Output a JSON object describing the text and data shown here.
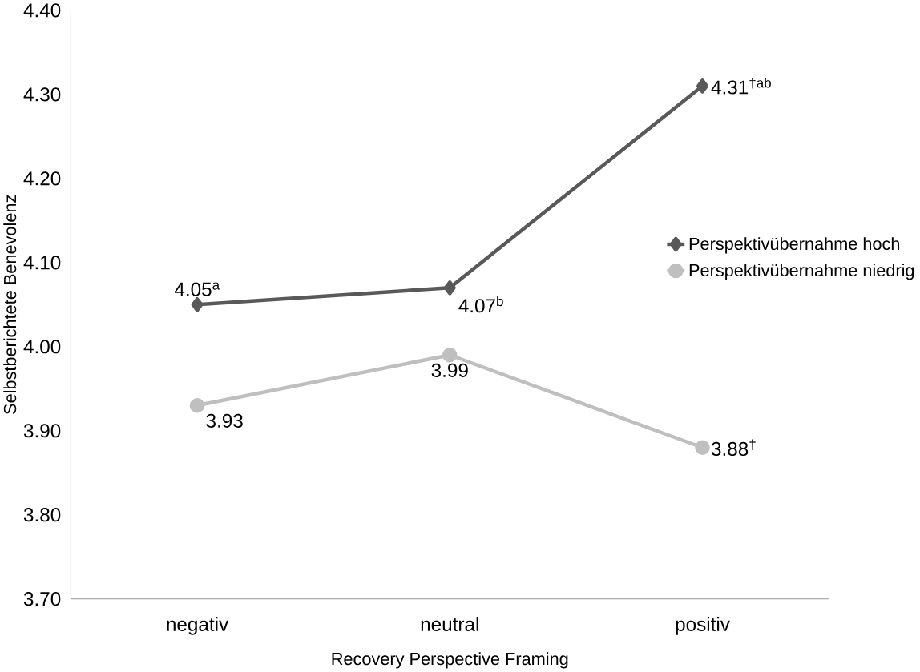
{
  "chart_data": {
    "type": "line",
    "xlabel": "Recovery Perspective Framing",
    "ylabel": "Selbstberichtete Benevolenz",
    "categories": [
      "negativ",
      "neutral",
      "positiv"
    ],
    "series": [
      {
        "name": "Perspektivübernahme hoch",
        "color": "#595959",
        "marker": "diamond",
        "values": [
          4.05,
          4.07,
          4.31
        ],
        "value_labels": [
          "4.05$^{a}$",
          "4.07$^{b}$",
          "4.31$^{†ab}$"
        ]
      },
      {
        "name": "Perspektivübernahme niedrig",
        "color": "#bfbfbf",
        "marker": "circle",
        "values": [
          3.93,
          3.99,
          3.88
        ],
        "value_labels": [
          "3.93",
          "3.99",
          "3.88$^{†}$"
        ]
      }
    ],
    "ylim": [
      3.7,
      4.4
    ],
    "yticks": [
      {
        "value": 3.7,
        "label": "3.70"
      },
      {
        "value": 3.8,
        "label": "3.80"
      },
      {
        "value": 3.9,
        "label": "3.90"
      },
      {
        "value": 4.0,
        "label": "4.00"
      },
      {
        "value": 4.1,
        "label": "4.10"
      },
      {
        "value": 4.2,
        "label": "4.20"
      },
      {
        "value": 4.3,
        "label": "4.30"
      },
      {
        "value": 4.4,
        "label": "4.40"
      }
    ],
    "grid": false,
    "legend": "right",
    "line_style": "solid"
  }
}
